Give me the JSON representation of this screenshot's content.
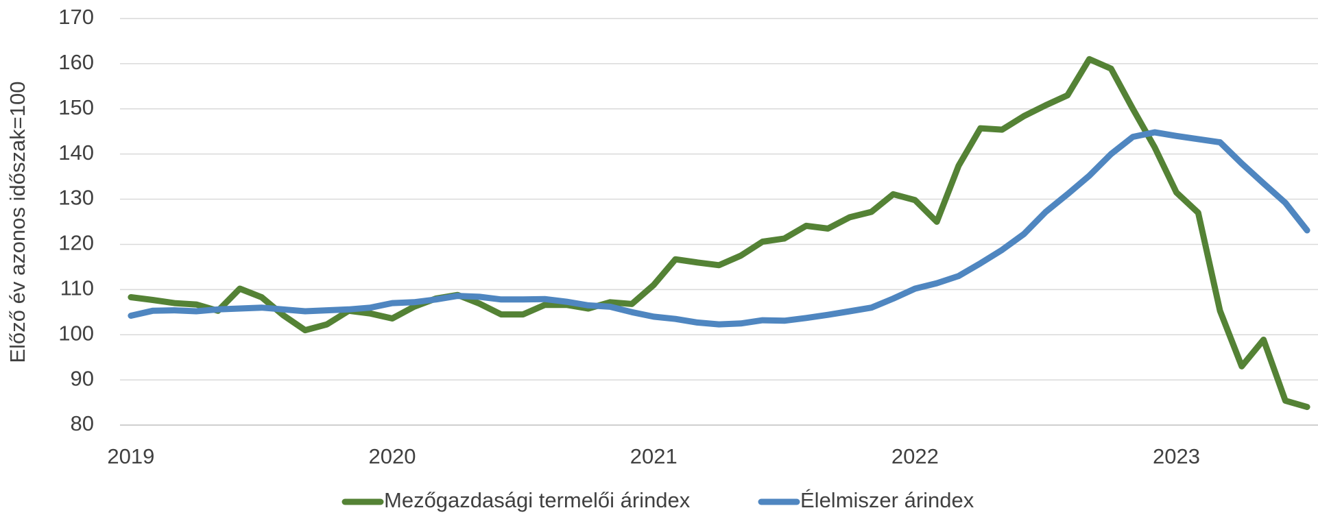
{
  "chart_data": {
    "type": "line",
    "ylabel": "Előző év azonos időszak=100",
    "categories": [
      "2019",
      null,
      null,
      null,
      null,
      null,
      null,
      null,
      null,
      null,
      null,
      null,
      "2020",
      null,
      null,
      null,
      null,
      null,
      null,
      null,
      null,
      null,
      null,
      null,
      "2021",
      null,
      null,
      null,
      null,
      null,
      null,
      null,
      null,
      null,
      null,
      null,
      "2022",
      null,
      null,
      null,
      null,
      null,
      null,
      null,
      null,
      null,
      null,
      null,
      "2023",
      null,
      null,
      null,
      null,
      null,
      null
    ],
    "series": [
      {
        "name": "Mezőgazdasági termelői árindex",
        "color": "#548235",
        "values": [
          108.3,
          107.7,
          107.0,
          106.7,
          105.3,
          110.2,
          108.3,
          104.3,
          101.0,
          102.3,
          105.3,
          104.7,
          103.6,
          106.2,
          108.0,
          108.8,
          106.9,
          104.5,
          104.5,
          106.6,
          106.6,
          105.8,
          107.2,
          106.8,
          111.0,
          116.7,
          116.0,
          115.4,
          117.5,
          120.6,
          121.3,
          124.1,
          123.5,
          126.0,
          127.2,
          131.1,
          129.8,
          125.0,
          137.4,
          145.7,
          145.4,
          148.4,
          150.8,
          153.0,
          161.0,
          158.9,
          150.0,
          141.5,
          131.5,
          127.0,
          105.3,
          93.0,
          98.9,
          85.4,
          84.0
        ]
      },
      {
        "name": "Élelmiszer árindex",
        "color": "#4f86c0",
        "values": [
          104.2,
          105.3,
          105.4,
          105.2,
          105.6,
          105.8,
          106.0,
          105.6,
          105.2,
          105.4,
          105.6,
          106.0,
          107.0,
          107.2,
          107.8,
          108.6,
          108.4,
          107.8,
          107.8,
          107.9,
          107.3,
          106.5,
          106.2,
          105.0,
          104.0,
          103.5,
          102.7,
          102.3,
          102.5,
          103.2,
          103.1,
          103.7,
          104.4,
          105.2,
          106.0,
          108.0,
          110.2,
          111.4,
          113.0,
          115.8,
          118.8,
          122.3,
          127.2,
          131.1,
          135.2,
          140.0,
          143.8,
          144.8,
          144.0,
          143.3,
          142.6,
          137.9,
          133.5,
          129.2,
          123.1
        ]
      }
    ],
    "ylim": [
      80,
      170
    ],
    "yticks": [
      80,
      90,
      100,
      110,
      120,
      130,
      140,
      150,
      160,
      170
    ],
    "grid": true,
    "legend": "bottom"
  }
}
